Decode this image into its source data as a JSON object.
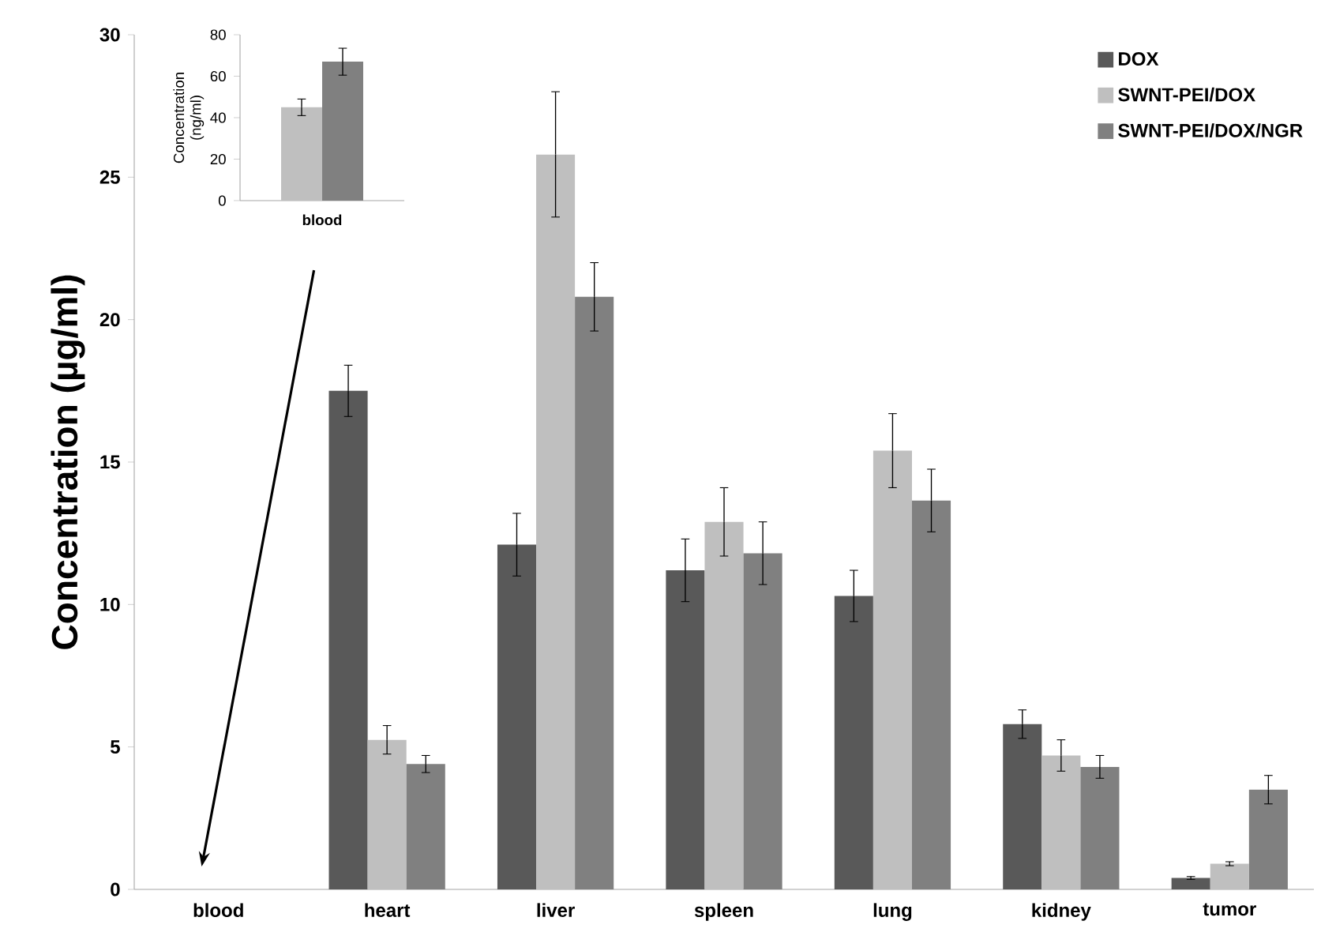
{
  "chart_data": [
    {
      "type": "bar",
      "ylabel": "Concentration (µg/ml)",
      "categories": [
        "blood",
        "heart",
        "liver",
        "spleen",
        "lung",
        "kidney",
        "tumor"
      ],
      "series": [
        {
          "name": "DOX",
          "color": "#595959",
          "values": [
            null,
            17.5,
            12.1,
            11.2,
            10.3,
            5.8,
            0.4
          ],
          "errors": [
            null,
            0.9,
            1.1,
            1.1,
            0.9,
            0.5,
            0.05
          ]
        },
        {
          "name": "SWNT-PEI/DOX",
          "color": "#bfbfbf",
          "values": [
            null,
            5.25,
            25.8,
            12.9,
            15.4,
            4.7,
            0.9
          ],
          "errors": [
            null,
            0.5,
            2.2,
            1.2,
            1.3,
            0.55,
            0.07
          ]
        },
        {
          "name": "SWNT-PEI/DOX/NGR",
          "color": "#808080",
          "values": [
            null,
            4.4,
            20.8,
            11.8,
            13.65,
            4.3,
            3.5
          ],
          "errors": [
            null,
            0.3,
            1.2,
            1.1,
            1.1,
            0.4,
            0.5
          ]
        }
      ],
      "ylim": [
        0,
        30
      ],
      "yticks": [
        0,
        5,
        10,
        15,
        20,
        25,
        30
      ],
      "grid": false,
      "legend": "top right"
    },
    {
      "type": "bar",
      "ylabel": "Concentration (ng/ml)",
      "categories": [
        "blood"
      ],
      "series": [
        {
          "color": "#595959",
          "values": [
            null
          ],
          "errors": [
            null
          ]
        },
        {
          "color": "#bfbfbf",
          "values": [
            45
          ],
          "errors": [
            4
          ]
        },
        {
          "color": "#808080",
          "values": [
            67
          ],
          "errors": [
            6.5
          ]
        }
      ],
      "ylim": [
        0,
        80
      ],
      "yticks": [
        0,
        20,
        40,
        60,
        80
      ],
      "grid": false,
      "legend": false
    }
  ]
}
